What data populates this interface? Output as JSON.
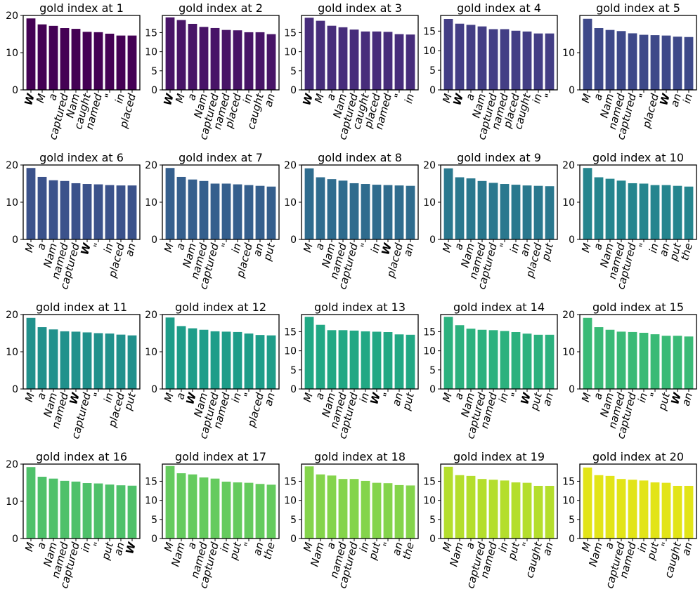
{
  "chart_data": [
    {
      "type": "bar",
      "title": "gold index at 1",
      "color": "#440154",
      "ylim": [
        0,
        20
      ],
      "yticks": [
        0,
        10,
        20
      ],
      "categories": [
        "W",
        "M",
        "a",
        "captured",
        "Nam",
        "caught",
        "named",
        "\"",
        "in",
        "placed"
      ],
      "values": [
        19.2,
        17.6,
        17.2,
        16.6,
        16.4,
        15.6,
        15.5,
        15.1,
        14.6,
        14.6
      ]
    },
    {
      "type": "bar",
      "title": "gold index at 2",
      "color": "#481467",
      "ylim": [
        0,
        19.5
      ],
      "yticks": [
        0,
        5,
        10,
        15
      ],
      "categories": [
        "W",
        "M",
        "a",
        "Nam",
        "captured",
        "named",
        "placed",
        "in",
        "caught",
        "an"
      ],
      "values": [
        19.0,
        18.3,
        17.3,
        16.5,
        16.2,
        15.7,
        15.6,
        15.1,
        15.1,
        14.6
      ]
    },
    {
      "type": "bar",
      "title": "gold index at 3",
      "color": "#472D7B",
      "ylim": [
        0,
        19.5
      ],
      "yticks": [
        0,
        5,
        10,
        15
      ],
      "categories": [
        "W",
        "M",
        "a",
        "Nam",
        "captured",
        "caught",
        "placed",
        "named",
        "\"",
        "in"
      ],
      "values": [
        18.9,
        18.1,
        16.8,
        16.4,
        15.8,
        15.3,
        15.3,
        15.2,
        14.6,
        14.5
      ]
    },
    {
      "type": "bar",
      "title": "gold index at 4",
      "color": "#433E85",
      "ylim": [
        0,
        19
      ],
      "yticks": [
        0,
        5,
        10,
        15
      ],
      "categories": [
        "M",
        "W",
        "a",
        "Nam",
        "captured",
        "named",
        "placed",
        "caught",
        "in",
        "\""
      ],
      "values": [
        18.1,
        16.9,
        16.6,
        16.2,
        15.5,
        15.5,
        15.1,
        14.9,
        14.4,
        14.4
      ]
    },
    {
      "type": "bar",
      "title": "gold index at 5",
      "color": "#3E4989",
      "ylim": [
        0,
        20
      ],
      "yticks": [
        0,
        10
      ],
      "categories": [
        "M",
        "a",
        "Nam",
        "named",
        "captured",
        "\"",
        "placed",
        "W",
        "an",
        "in"
      ],
      "values": [
        19.1,
        16.6,
        16.1,
        15.8,
        15.2,
        14.8,
        14.7,
        14.6,
        14.3,
        14.2
      ]
    },
    {
      "type": "bar",
      "title": "gold index at 6",
      "color": "#3B528B",
      "ylim": [
        0,
        20
      ],
      "yticks": [
        0,
        10,
        20
      ],
      "categories": [
        "M",
        "a",
        "Nam",
        "named",
        "captured",
        "W",
        "\"",
        "in",
        "placed",
        "an"
      ],
      "values": [
        19.2,
        16.8,
        15.9,
        15.7,
        15.1,
        14.9,
        14.8,
        14.6,
        14.5,
        14.5
      ]
    },
    {
      "type": "bar",
      "title": "gold index at 7",
      "color": "#355F8D",
      "ylim": [
        0,
        20
      ],
      "yticks": [
        0,
        10,
        20
      ],
      "categories": [
        "M",
        "a",
        "Nam",
        "named",
        "captured",
        "\"",
        "in",
        "placed",
        "an",
        "put"
      ],
      "values": [
        19.2,
        16.8,
        16.1,
        15.7,
        15.0,
        15.0,
        14.8,
        14.6,
        14.4,
        14.2
      ]
    },
    {
      "type": "bar",
      "title": "gold index at 8",
      "color": "#2F6C8E",
      "ylim": [
        0,
        20
      ],
      "yticks": [
        0,
        10,
        20
      ],
      "categories": [
        "M",
        "a",
        "Nam",
        "named",
        "captured",
        "\"",
        "in",
        "W",
        "placed",
        "an"
      ],
      "values": [
        19.1,
        16.7,
        16.2,
        15.8,
        15.1,
        14.9,
        14.7,
        14.6,
        14.5,
        14.4
      ]
    },
    {
      "type": "bar",
      "title": "gold index at 9",
      "color": "#2A788E",
      "ylim": [
        0,
        20
      ],
      "yticks": [
        0,
        10,
        20
      ],
      "categories": [
        "M",
        "a",
        "Nam",
        "named",
        "captured",
        "\"",
        "in",
        "an",
        "placed",
        "put"
      ],
      "values": [
        19.1,
        16.7,
        16.4,
        15.7,
        15.2,
        14.9,
        14.7,
        14.5,
        14.4,
        14.3
      ]
    },
    {
      "type": "bar",
      "title": "gold index at 10",
      "color": "#25858E",
      "ylim": [
        0,
        20
      ],
      "yticks": [
        0,
        10,
        20
      ],
      "categories": [
        "M",
        "a",
        "Nam",
        "named",
        "captured",
        "\"",
        "in",
        "an",
        "put",
        "the"
      ],
      "values": [
        19.2,
        16.7,
        16.3,
        15.8,
        15.1,
        15.0,
        14.6,
        14.6,
        14.4,
        14.2
      ]
    },
    {
      "type": "bar",
      "title": "gold index at 11",
      "color": "#21918C",
      "ylim": [
        0,
        20
      ],
      "yticks": [
        0,
        10,
        20
      ],
      "categories": [
        "M",
        "a",
        "Nam",
        "named",
        "W",
        "captured",
        "\"",
        "in",
        "placed",
        "put"
      ],
      "values": [
        19.1,
        16.6,
        16.0,
        15.5,
        15.4,
        15.2,
        15.0,
        14.9,
        14.6,
        14.4
      ]
    },
    {
      "type": "bar",
      "title": "gold index at 12",
      "color": "#1E9D89",
      "ylim": [
        0,
        20
      ],
      "yticks": [
        0,
        10,
        20
      ],
      "categories": [
        "M",
        "a",
        "W",
        "Nam",
        "captured",
        "named",
        "in",
        "\"",
        "placed",
        "an"
      ],
      "values": [
        19.2,
        16.9,
        16.3,
        15.9,
        15.5,
        15.4,
        15.3,
        14.9,
        14.5,
        14.4
      ]
    },
    {
      "type": "bar",
      "title": "gold index at 13",
      "color": "#22A884",
      "ylim": [
        0,
        19.5
      ],
      "yticks": [
        0,
        5,
        10,
        15
      ],
      "categories": [
        "M",
        "a",
        "Nam",
        "named",
        "captured",
        "in",
        "W",
        "\"",
        "an",
        "put"
      ],
      "values": [
        18.9,
        16.8,
        15.4,
        15.4,
        15.3,
        15.1,
        15.0,
        14.9,
        14.3,
        14.2
      ]
    },
    {
      "type": "bar",
      "title": "gold index at 14",
      "color": "#2CB17E",
      "ylim": [
        0,
        19.5
      ],
      "yticks": [
        0,
        5,
        10,
        15
      ],
      "categories": [
        "M",
        "a",
        "Nam",
        "captured",
        "named",
        "in",
        "\"",
        "W",
        "put",
        "an"
      ],
      "values": [
        18.9,
        16.7,
        15.8,
        15.5,
        15.4,
        15.2,
        14.9,
        14.5,
        14.2,
        14.2
      ]
    },
    {
      "type": "bar",
      "title": "gold index at 15",
      "color": "#3ABA76",
      "ylim": [
        0,
        20
      ],
      "yticks": [
        0,
        10,
        20
      ],
      "categories": [
        "M",
        "a",
        "Nam",
        "named",
        "captured",
        "in",
        "\"",
        "put",
        "W",
        "an"
      ],
      "values": [
        19.1,
        16.6,
        15.9,
        15.4,
        15.3,
        15.1,
        14.7,
        14.3,
        14.3,
        14.1
      ]
    },
    {
      "type": "bar",
      "title": "gold index at 16",
      "color": "#4FC16A",
      "ylim": [
        0,
        20
      ],
      "yticks": [
        0,
        10,
        20
      ],
      "categories": [
        "M",
        "a",
        "Nam",
        "named",
        "captured",
        "in",
        "\"",
        "put",
        "an",
        "W"
      ],
      "values": [
        19.2,
        16.6,
        16.1,
        15.5,
        15.3,
        14.9,
        14.8,
        14.5,
        14.3,
        14.2
      ]
    },
    {
      "type": "bar",
      "title": "gold index at 17",
      "color": "#65CB5E",
      "ylim": [
        0,
        19.5
      ],
      "yticks": [
        0,
        5,
        10,
        15
      ],
      "categories": [
        "M",
        "Nam",
        "a",
        "named",
        "captured",
        "in",
        "put",
        "\"",
        "an",
        "the"
      ],
      "values": [
        19.0,
        17.1,
        16.8,
        16.0,
        15.7,
        14.9,
        14.7,
        14.6,
        14.3,
        14.1
      ]
    },
    {
      "type": "bar",
      "title": "gold index at 18",
      "color": "#84D44B",
      "ylim": [
        0,
        19.5
      ],
      "yticks": [
        0,
        5,
        10,
        15
      ],
      "categories": [
        "M",
        "Nam",
        "a",
        "named",
        "captured",
        "in",
        "put",
        "\"",
        "an",
        "the"
      ],
      "values": [
        18.9,
        16.8,
        16.5,
        15.6,
        15.6,
        15.1,
        14.6,
        14.5,
        14.0,
        13.9
      ]
    },
    {
      "type": "bar",
      "title": "gold index at 19",
      "color": "#B4DE2C",
      "ylim": [
        0,
        19.5
      ],
      "yticks": [
        0,
        5,
        10,
        15
      ],
      "categories": [
        "M",
        "Nam",
        "a",
        "captured",
        "named",
        "in",
        "put",
        "\"",
        "caught",
        "an"
      ],
      "values": [
        18.8,
        16.6,
        16.4,
        15.6,
        15.4,
        15.2,
        14.7,
        14.6,
        13.8,
        13.8
      ]
    },
    {
      "type": "bar",
      "title": "gold index at 20",
      "color": "#E2E418",
      "ylim": [
        0,
        19.5
      ],
      "yticks": [
        0,
        5,
        10,
        15
      ],
      "categories": [
        "M",
        "Nam",
        "a",
        "captured",
        "named",
        "in",
        "put",
        "\"",
        "caught",
        "an"
      ],
      "values": [
        18.6,
        16.6,
        16.4,
        15.6,
        15.4,
        15.2,
        14.7,
        14.6,
        13.8,
        13.8
      ]
    }
  ]
}
